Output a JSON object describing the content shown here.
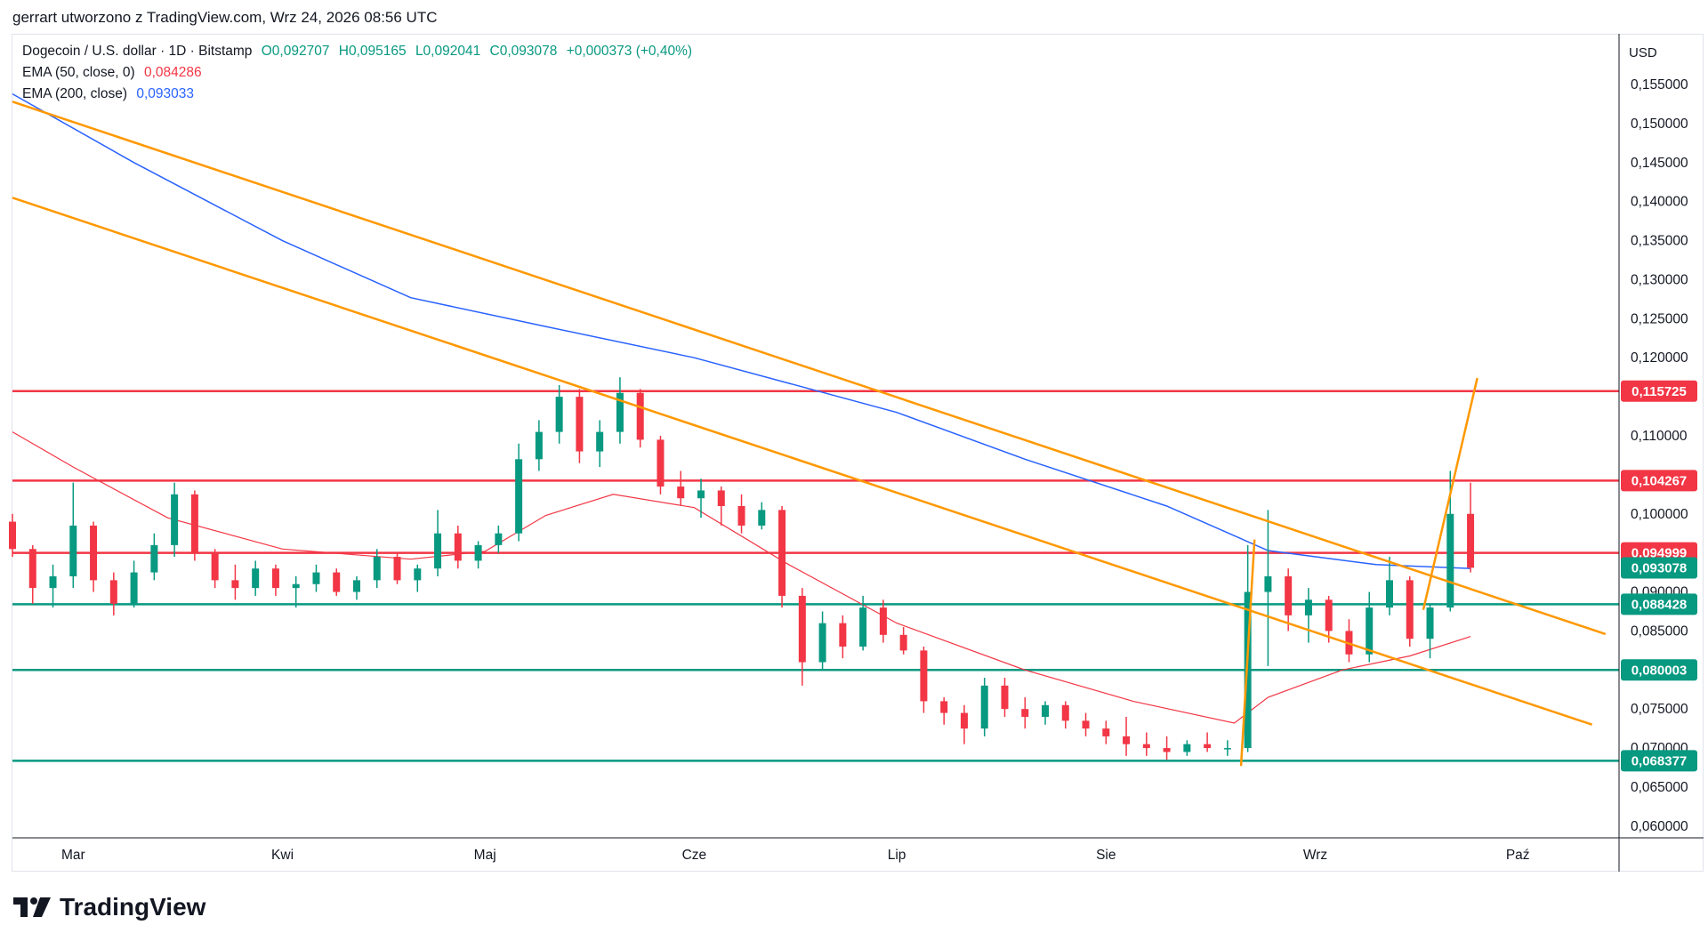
{
  "caption": "gerrart utworzono z TradingView.com, Wrz 24, 2026 08:56 UTC",
  "legend": {
    "symbol": "Dogecoin / U.S. dollar · 1D · Bitstamp",
    "open": "O0,092707",
    "high": "H0,095165",
    "low": "L0,092041",
    "close": "C0,093078",
    "change": "+0,000373 (+0,40%)",
    "ema50_label": "EMA (50, close, 0)",
    "ema50_value": "0,084286",
    "ema200_label": "EMA (200, close)",
    "ema200_value": "0,093033"
  },
  "currency": "USD",
  "branding": "TradingView",
  "colors": {
    "up": "#089981",
    "down": "#f23645",
    "ema50": "#f23645",
    "ema200": "#2962ff",
    "trendline": "#ff9800",
    "resistance": "#f23645",
    "support": "#089981",
    "current": "#089981"
  },
  "chart_data": {
    "type": "candlestick",
    "x_axis_labels": [
      "Mar",
      "Kwi",
      "Maj",
      "Cze",
      "Lip",
      "Sie",
      "Wrz",
      "Paź"
    ],
    "y_ticks": [
      "0,155000",
      "0,150000",
      "0,145000",
      "0,140000",
      "0,135000",
      "0,130000",
      "0,125000",
      "0,120000",
      "0,110000",
      "0,100000",
      "0,090000",
      "0,085000",
      "0,075000",
      "0,070000",
      "0,065000",
      "0,060000"
    ],
    "y_tick_values": [
      0.155,
      0.15,
      0.145,
      0.14,
      0.135,
      0.13,
      0.125,
      0.12,
      0.11,
      0.1,
      0.09,
      0.085,
      0.075,
      0.07,
      0.065,
      0.06
    ],
    "ylim": [
      0.0585,
      0.1615
    ],
    "date_range": [
      "2026-02-20",
      "2026-10-16"
    ],
    "horizontal_levels": [
      {
        "value": 0.115725,
        "label": "0,115725",
        "kind": "resistance"
      },
      {
        "value": 0.104267,
        "label": "0,104267",
        "kind": "resistance"
      },
      {
        "value": 0.094999,
        "label": "0,094999",
        "kind": "resistance"
      },
      {
        "value": 0.088428,
        "label": "0,088428",
        "kind": "support"
      },
      {
        "value": 0.080003,
        "label": "0,080003",
        "kind": "support"
      },
      {
        "value": 0.068377,
        "label": "0,068377",
        "kind": "support"
      }
    ],
    "current_price": {
      "value": 0.093078,
      "label": "0,093078"
    },
    "trendlines": [
      {
        "from": [
          "2026-02-20",
          0.1528
        ],
        "to": [
          "2026-10-14",
          0.0846
        ]
      },
      {
        "from": [
          "2026-02-20",
          0.1405
        ],
        "to": [
          "2026-10-12",
          0.073
        ]
      },
      {
        "from": [
          "2026-08-21",
          0.0677
        ],
        "to": [
          "2026-08-23",
          0.0967
        ]
      },
      {
        "from": [
          "2026-09-17",
          0.0877
        ],
        "to": [
          "2026-09-25",
          0.1174
        ]
      }
    ],
    "ema50_points": [
      [
        "2026-02-20",
        0.1105
      ],
      [
        "2026-03-01",
        0.106
      ],
      [
        "2026-03-15",
        0.0995
      ],
      [
        "2026-04-01",
        0.0955
      ],
      [
        "2026-04-20",
        0.0942
      ],
      [
        "2026-05-01",
        0.0952
      ],
      [
        "2026-05-10",
        0.0998
      ],
      [
        "2026-05-20",
        0.1025
      ],
      [
        "2026-06-01",
        0.1008
      ],
      [
        "2026-06-15",
        0.0935
      ],
      [
        "2026-07-01",
        0.086
      ],
      [
        "2026-07-20",
        0.08
      ],
      [
        "2026-08-05",
        0.076
      ],
      [
        "2026-08-20",
        0.0732
      ],
      [
        "2026-08-25",
        0.0765
      ],
      [
        "2026-09-05",
        0.08
      ],
      [
        "2026-09-15",
        0.0818
      ],
      [
        "2026-09-24",
        0.0843
      ]
    ],
    "ema200_points": [
      [
        "2026-02-20",
        0.1538
      ],
      [
        "2026-03-10",
        0.145
      ],
      [
        "2026-04-01",
        0.135
      ],
      [
        "2026-04-20",
        0.1277
      ],
      [
        "2026-05-10",
        0.124
      ],
      [
        "2026-06-01",
        0.12
      ],
      [
        "2026-07-01",
        0.113
      ],
      [
        "2026-07-20",
        0.107
      ],
      [
        "2026-08-10",
        0.101
      ],
      [
        "2026-08-25",
        0.0953
      ],
      [
        "2026-09-10",
        0.0935
      ],
      [
        "2026-09-24",
        0.093
      ]
    ],
    "ohlc": [
      [
        "2026-02-20",
        0.099,
        0.1,
        0.0945,
        0.0955
      ],
      [
        "2026-02-23",
        0.0955,
        0.096,
        0.0885,
        0.0905
      ],
      [
        "2026-02-26",
        0.0905,
        0.0935,
        0.088,
        0.092
      ],
      [
        "2026-03-01",
        0.092,
        0.104,
        0.0905,
        0.0985
      ],
      [
        "2026-03-04",
        0.0985,
        0.099,
        0.09,
        0.0915
      ],
      [
        "2026-03-07",
        0.0915,
        0.0925,
        0.087,
        0.0885
      ],
      [
        "2026-03-10",
        0.0885,
        0.094,
        0.088,
        0.0925
      ],
      [
        "2026-03-13",
        0.0925,
        0.0975,
        0.0915,
        0.096
      ],
      [
        "2026-03-16",
        0.096,
        0.104,
        0.0945,
        0.1025
      ],
      [
        "2026-03-19",
        0.1025,
        0.103,
        0.094,
        0.095
      ],
      [
        "2026-03-22",
        0.095,
        0.0955,
        0.0905,
        0.0915
      ],
      [
        "2026-03-25",
        0.0915,
        0.0935,
        0.089,
        0.0905
      ],
      [
        "2026-03-28",
        0.0905,
        0.094,
        0.0895,
        0.093
      ],
      [
        "2026-03-31",
        0.093,
        0.0935,
        0.0895,
        0.0905
      ],
      [
        "2026-04-03",
        0.0905,
        0.092,
        0.088,
        0.091
      ],
      [
        "2026-04-06",
        0.091,
        0.0935,
        0.09,
        0.0925
      ],
      [
        "2026-04-09",
        0.0925,
        0.093,
        0.0895,
        0.09
      ],
      [
        "2026-04-12",
        0.09,
        0.092,
        0.089,
        0.0915
      ],
      [
        "2026-04-15",
        0.0915,
        0.0955,
        0.0905,
        0.0945
      ],
      [
        "2026-04-18",
        0.0945,
        0.095,
        0.091,
        0.0915
      ],
      [
        "2026-04-21",
        0.0915,
        0.0935,
        0.09,
        0.093
      ],
      [
        "2026-04-24",
        0.093,
        0.1005,
        0.092,
        0.0975
      ],
      [
        "2026-04-27",
        0.0975,
        0.0985,
        0.093,
        0.094
      ],
      [
        "2026-04-30",
        0.094,
        0.0965,
        0.093,
        0.096
      ],
      [
        "2026-05-03",
        0.096,
        0.0985,
        0.095,
        0.0975
      ],
      [
        "2026-05-06",
        0.0975,
        0.109,
        0.0965,
        0.107
      ],
      [
        "2026-05-09",
        0.107,
        0.112,
        0.1055,
        0.1105
      ],
      [
        "2026-05-12",
        0.1105,
        0.1165,
        0.109,
        0.115
      ],
      [
        "2026-05-15",
        0.115,
        0.116,
        0.1065,
        0.108
      ],
      [
        "2026-05-18",
        0.108,
        0.112,
        0.106,
        0.1105
      ],
      [
        "2026-05-21",
        0.1105,
        0.1175,
        0.109,
        0.1155
      ],
      [
        "2026-05-24",
        0.1155,
        0.116,
        0.1085,
        0.1095
      ],
      [
        "2026-05-27",
        0.1095,
        0.11,
        0.1025,
        0.1035
      ],
      [
        "2026-05-30",
        0.1035,
        0.1055,
        0.101,
        0.102
      ],
      [
        "2026-06-02",
        0.102,
        0.1045,
        0.0995,
        0.103
      ],
      [
        "2026-06-05",
        0.103,
        0.1035,
        0.0985,
        0.101
      ],
      [
        "2026-06-08",
        0.101,
        0.1025,
        0.0975,
        0.0985
      ],
      [
        "2026-06-11",
        0.0985,
        0.1015,
        0.098,
        0.1005
      ],
      [
        "2026-06-14",
        0.1005,
        0.101,
        0.088,
        0.0895
      ],
      [
        "2026-06-17",
        0.0895,
        0.0905,
        0.078,
        0.081
      ],
      [
        "2026-06-20",
        0.081,
        0.0875,
        0.08,
        0.086
      ],
      [
        "2026-06-23",
        0.086,
        0.087,
        0.0815,
        0.083
      ],
      [
        "2026-06-26",
        0.083,
        0.0895,
        0.0825,
        0.088
      ],
      [
        "2026-06-29",
        0.088,
        0.089,
        0.0835,
        0.0845
      ],
      [
        "2026-07-02",
        0.0845,
        0.0855,
        0.082,
        0.0825
      ],
      [
        "2026-07-05",
        0.0825,
        0.083,
        0.0745,
        0.076
      ],
      [
        "2026-07-08",
        0.076,
        0.0765,
        0.073,
        0.0745
      ],
      [
        "2026-07-11",
        0.0745,
        0.0755,
        0.0705,
        0.0725
      ],
      [
        "2026-07-14",
        0.0725,
        0.079,
        0.0715,
        0.078
      ],
      [
        "2026-07-17",
        0.078,
        0.079,
        0.074,
        0.075
      ],
      [
        "2026-07-20",
        0.075,
        0.0765,
        0.0725,
        0.074
      ],
      [
        "2026-07-23",
        0.074,
        0.076,
        0.073,
        0.0755
      ],
      [
        "2026-07-26",
        0.0755,
        0.076,
        0.0725,
        0.0735
      ],
      [
        "2026-07-29",
        0.0735,
        0.0745,
        0.0715,
        0.0725
      ],
      [
        "2026-08-01",
        0.0725,
        0.0735,
        0.0705,
        0.0715
      ],
      [
        "2026-08-04",
        0.0715,
        0.074,
        0.069,
        0.0705
      ],
      [
        "2026-08-07",
        0.0705,
        0.072,
        0.069,
        0.07
      ],
      [
        "2026-08-10",
        0.07,
        0.0715,
        0.0685,
        0.0695
      ],
      [
        "2026-08-13",
        0.0695,
        0.071,
        0.069,
        0.0705
      ],
      [
        "2026-08-16",
        0.0705,
        0.072,
        0.0695,
        0.07
      ],
      [
        "2026-08-19",
        0.07,
        0.071,
        0.069,
        0.07
      ],
      [
        "2026-08-22",
        0.07,
        0.096,
        0.0695,
        0.09
      ],
      [
        "2026-08-25",
        0.09,
        0.1005,
        0.0805,
        0.092
      ],
      [
        "2026-08-28",
        0.092,
        0.093,
        0.085,
        0.087
      ],
      [
        "2026-08-31",
        0.087,
        0.0905,
        0.0835,
        0.089
      ],
      [
        "2026-09-03",
        0.089,
        0.0895,
        0.0835,
        0.085
      ],
      [
        "2026-09-06",
        0.085,
        0.0865,
        0.081,
        0.082
      ],
      [
        "2026-09-09",
        0.082,
        0.09,
        0.081,
        0.088
      ],
      [
        "2026-09-12",
        0.088,
        0.0945,
        0.087,
        0.0915
      ],
      [
        "2026-09-15",
        0.0915,
        0.092,
        0.083,
        0.084
      ],
      [
        "2026-09-18",
        0.084,
        0.0885,
        0.0815,
        0.088
      ],
      [
        "2026-09-21",
        0.088,
        0.1055,
        0.0875,
        0.1
      ],
      [
        "2026-09-24",
        0.1,
        0.104,
        0.0925,
        0.0931
      ]
    ]
  }
}
